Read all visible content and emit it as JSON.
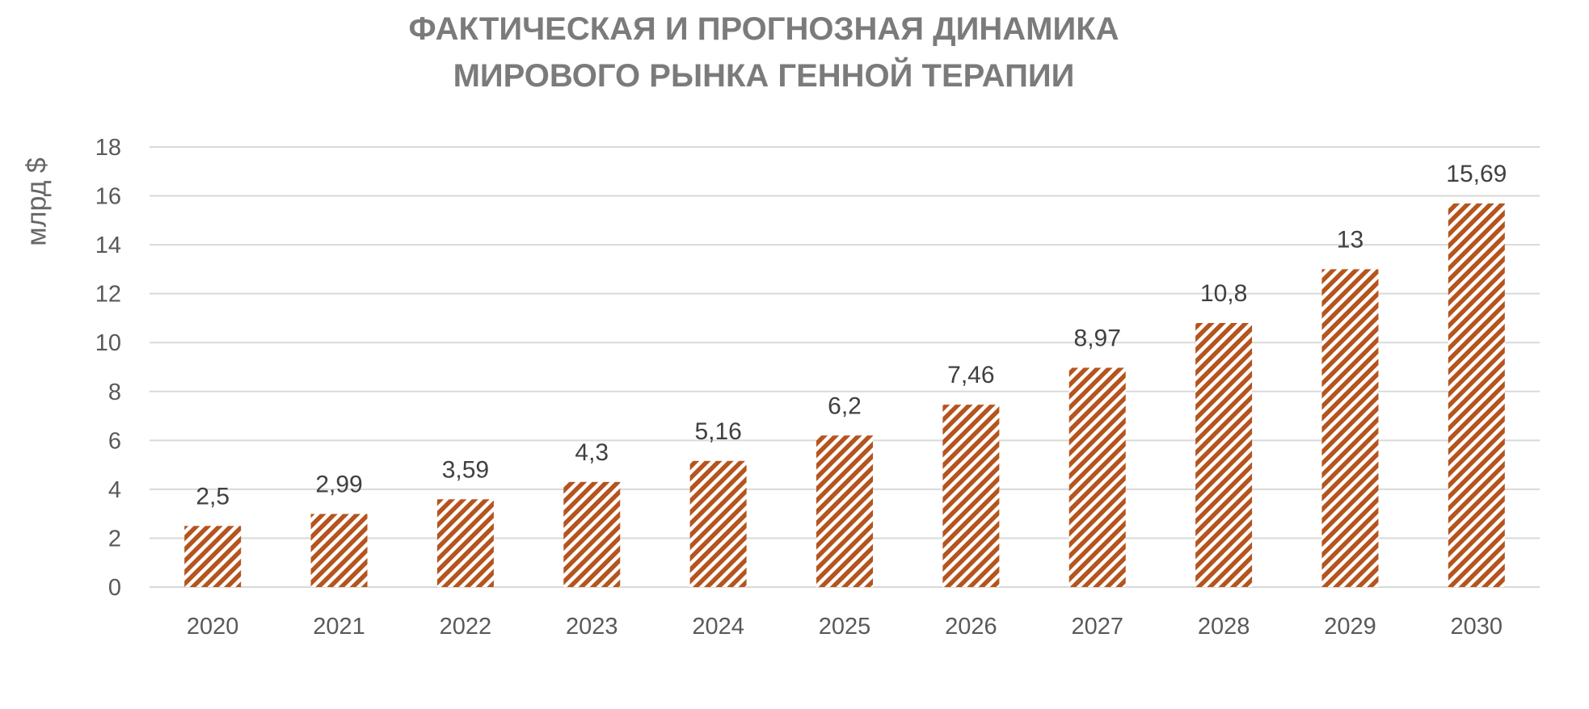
{
  "chart_data": {
    "type": "bar",
    "title_lines": [
      "ФАКТИЧЕСКАЯ И ПРОГНОЗНАЯ ДИНАМИКА",
      "МИРОВОГО РЫНКА ГЕННОЙ ТЕРАПИИ"
    ],
    "ylabel": "млрд $",
    "xlabel": "",
    "categories": [
      "2020",
      "2021",
      "2022",
      "2023",
      "2024",
      "2025",
      "2026",
      "2027",
      "2028",
      "2029",
      "2030"
    ],
    "values": [
      2.5,
      2.99,
      3.59,
      4.3,
      5.16,
      6.2,
      7.46,
      8.97,
      10.8,
      13,
      15.69
    ],
    "data_labels": [
      "2,5",
      "2,99",
      "3,59",
      "4,3",
      "5,16",
      "6,2",
      "7,46",
      "8,97",
      "10,8",
      "13",
      "15,69"
    ],
    "ylim": [
      0,
      18
    ],
    "yticks": [
      0,
      2,
      4,
      6,
      8,
      10,
      12,
      14,
      16,
      18
    ],
    "grid": true,
    "legend": "none",
    "bar_color": "#b5541e",
    "bar_pattern": "diagonal-hatch",
    "grid_color": "#d9d9d9",
    "title_color": "#7b7b7b"
  }
}
